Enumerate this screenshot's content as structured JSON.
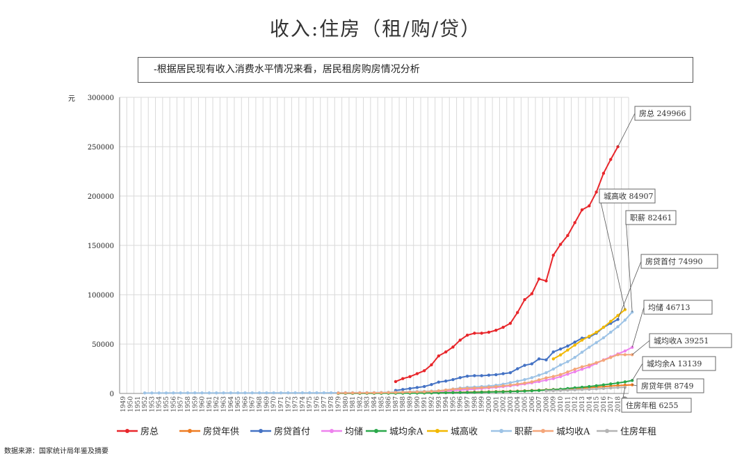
{
  "title": "收入:住房（租/购/贷）",
  "note": "-根据居民现有收入消费水平情况来看，居民租房购房情况分析",
  "source": "数据来源：国家统计局年鉴及摘要",
  "chart_data": {
    "type": "line",
    "ylabel": "元",
    "ylim": [
      0,
      300000
    ],
    "yticks": [
      0,
      50000,
      100000,
      150000,
      200000,
      250000,
      300000
    ],
    "ytick_labels": [
      "0",
      "50000",
      "100000",
      "150000",
      "200000",
      "250000",
      "300000"
    ],
    "x_start": 1949,
    "x_end": 2019,
    "grid": true,
    "legend": "bottom",
    "series": [
      {
        "name": "房总",
        "color": "#e8262b",
        "label": "房总 249966",
        "start": 1987,
        "values": [
          12000,
          15000,
          17000,
          20000,
          23000,
          29000,
          38000,
          42000,
          47000,
          54000,
          59000,
          61000,
          61000,
          62000,
          64000,
          67000,
          71000,
          82000,
          95000,
          101000,
          116000,
          114000,
          140000,
          151000,
          160000,
          173000,
          186000,
          190000,
          204000,
          223000,
          237000,
          249966
        ]
      },
      {
        "name": "房贷年供",
        "color": "#ee7c22",
        "label": "房贷年供 8749",
        "start": 1979,
        "values": [
          200,
          220,
          240,
          260,
          290,
          320,
          350,
          380,
          410,
          450,
          500,
          560,
          620,
          700,
          800,
          900,
          1000,
          1150,
          1300,
          1400,
          1550,
          1700,
          1850,
          2000,
          2200,
          2400,
          2700,
          3000,
          3300,
          3700,
          4000,
          4300,
          4700,
          5100,
          5500,
          5900,
          6400,
          6900,
          7500,
          8000,
          8400,
          8749
        ]
      },
      {
        "name": "房贷首付",
        "color": "#4472c4",
        "label": "房贷首付 74990",
        "start": 1987,
        "values": [
          3000,
          4000,
          5000,
          6000,
          7000,
          9000,
          11500,
          12500,
          14000,
          16000,
          17500,
          18000,
          18000,
          18500,
          19000,
          20000,
          21000,
          25000,
          28500,
          30000,
          35000,
          34000,
          42000,
          45000,
          48000,
          52000,
          56000,
          57000,
          61000,
          67000,
          71000,
          74990
        ]
      },
      {
        "name": "均储",
        "color": "#ee82ee",
        "label": "均储 46713",
        "start": 1979,
        "values": [
          100,
          130,
          170,
          220,
          280,
          350,
          450,
          560,
          700,
          850,
          1000,
          1200,
          1450,
          1750,
          2100,
          2500,
          2900,
          3400,
          3900,
          4400,
          5000,
          5600,
          6200,
          6900,
          7700,
          8600,
          9600,
          10700,
          12000,
          13500,
          15000,
          17000,
          19500,
          22000,
          24500,
          27000,
          30500,
          34000,
          37000,
          40000,
          43000,
          46713
        ]
      },
      {
        "name": "城均余A",
        "color": "#2aa84a",
        "label": "城均余A 13139",
        "start": 1979,
        "values": [
          50,
          60,
          70,
          80,
          100,
          120,
          150,
          180,
          210,
          250,
          300,
          350,
          420,
          500,
          600,
          700,
          800,
          900,
          1000,
          1100,
          1250,
          1400,
          1550,
          1700,
          1900,
          2100,
          2400,
          2700,
          3000,
          3400,
          3800,
          4300,
          5000,
          5700,
          6300,
          7000,
          7800,
          8700,
          9600,
          10600,
          11700,
          13139
        ]
      },
      {
        "name": "城高收",
        "color": "#f2b800",
        "label": "城高收 84907",
        "start": 2009,
        "values": [
          35000,
          39000,
          44000,
          49000,
          54000,
          58000,
          62000,
          67000,
          73000,
          79000,
          84907
        ]
      },
      {
        "name": "职薪",
        "color": "#9dc3e6",
        "label": "职薪 82461",
        "start": 1952,
        "values": [
          450,
          450,
          480,
          500,
          520,
          530,
          540,
          540,
          530,
          520,
          520,
          530,
          540,
          550,
          560,
          570,
          570,
          580,
          590,
          600,
          610,
          620,
          630,
          640,
          650,
          660,
          670,
          700,
          760,
          780,
          800,
          820,
          860,
          1000,
          1150,
          1300,
          1450,
          1750,
          1950,
          2150,
          2400,
          2700,
          3400,
          4500,
          5500,
          6200,
          6500,
          7000,
          7500,
          8300,
          9400,
          10900,
          12400,
          14000,
          16000,
          18500,
          21000,
          24700,
          28900,
          32200,
          36500,
          41800,
          46800,
          51500,
          56400,
          62000,
          67600,
          74300,
          82461
        ]
      },
      {
        "name": "城均收A",
        "color": "#f4a67a",
        "label": "城均收A 39251",
        "start": 1979,
        "values": [
          400,
          480,
          520,
          560,
          600,
          650,
          740,
          900,
          1000,
          1180,
          1370,
          1510,
          1700,
          2030,
          2580,
          3500,
          4280,
          4840,
          5160,
          5430,
          5850,
          6280,
          6860,
          7700,
          8470,
          9420,
          10490,
          11760,
          13790,
          15780,
          17170,
          19110,
          21810,
          24560,
          26960,
          28840,
          31190,
          33620,
          36400,
          39251,
          39251,
          39251
        ]
      },
      {
        "name": "住房年租",
        "color": "#b4b4b4",
        "label": "住房年租 6255",
        "start": 2008,
        "values": [
          2600,
          2800,
          3000,
          3300,
          3600,
          3900,
          4200,
          4600,
          5000,
          5500,
          5900,
          6255
        ]
      }
    ]
  }
}
